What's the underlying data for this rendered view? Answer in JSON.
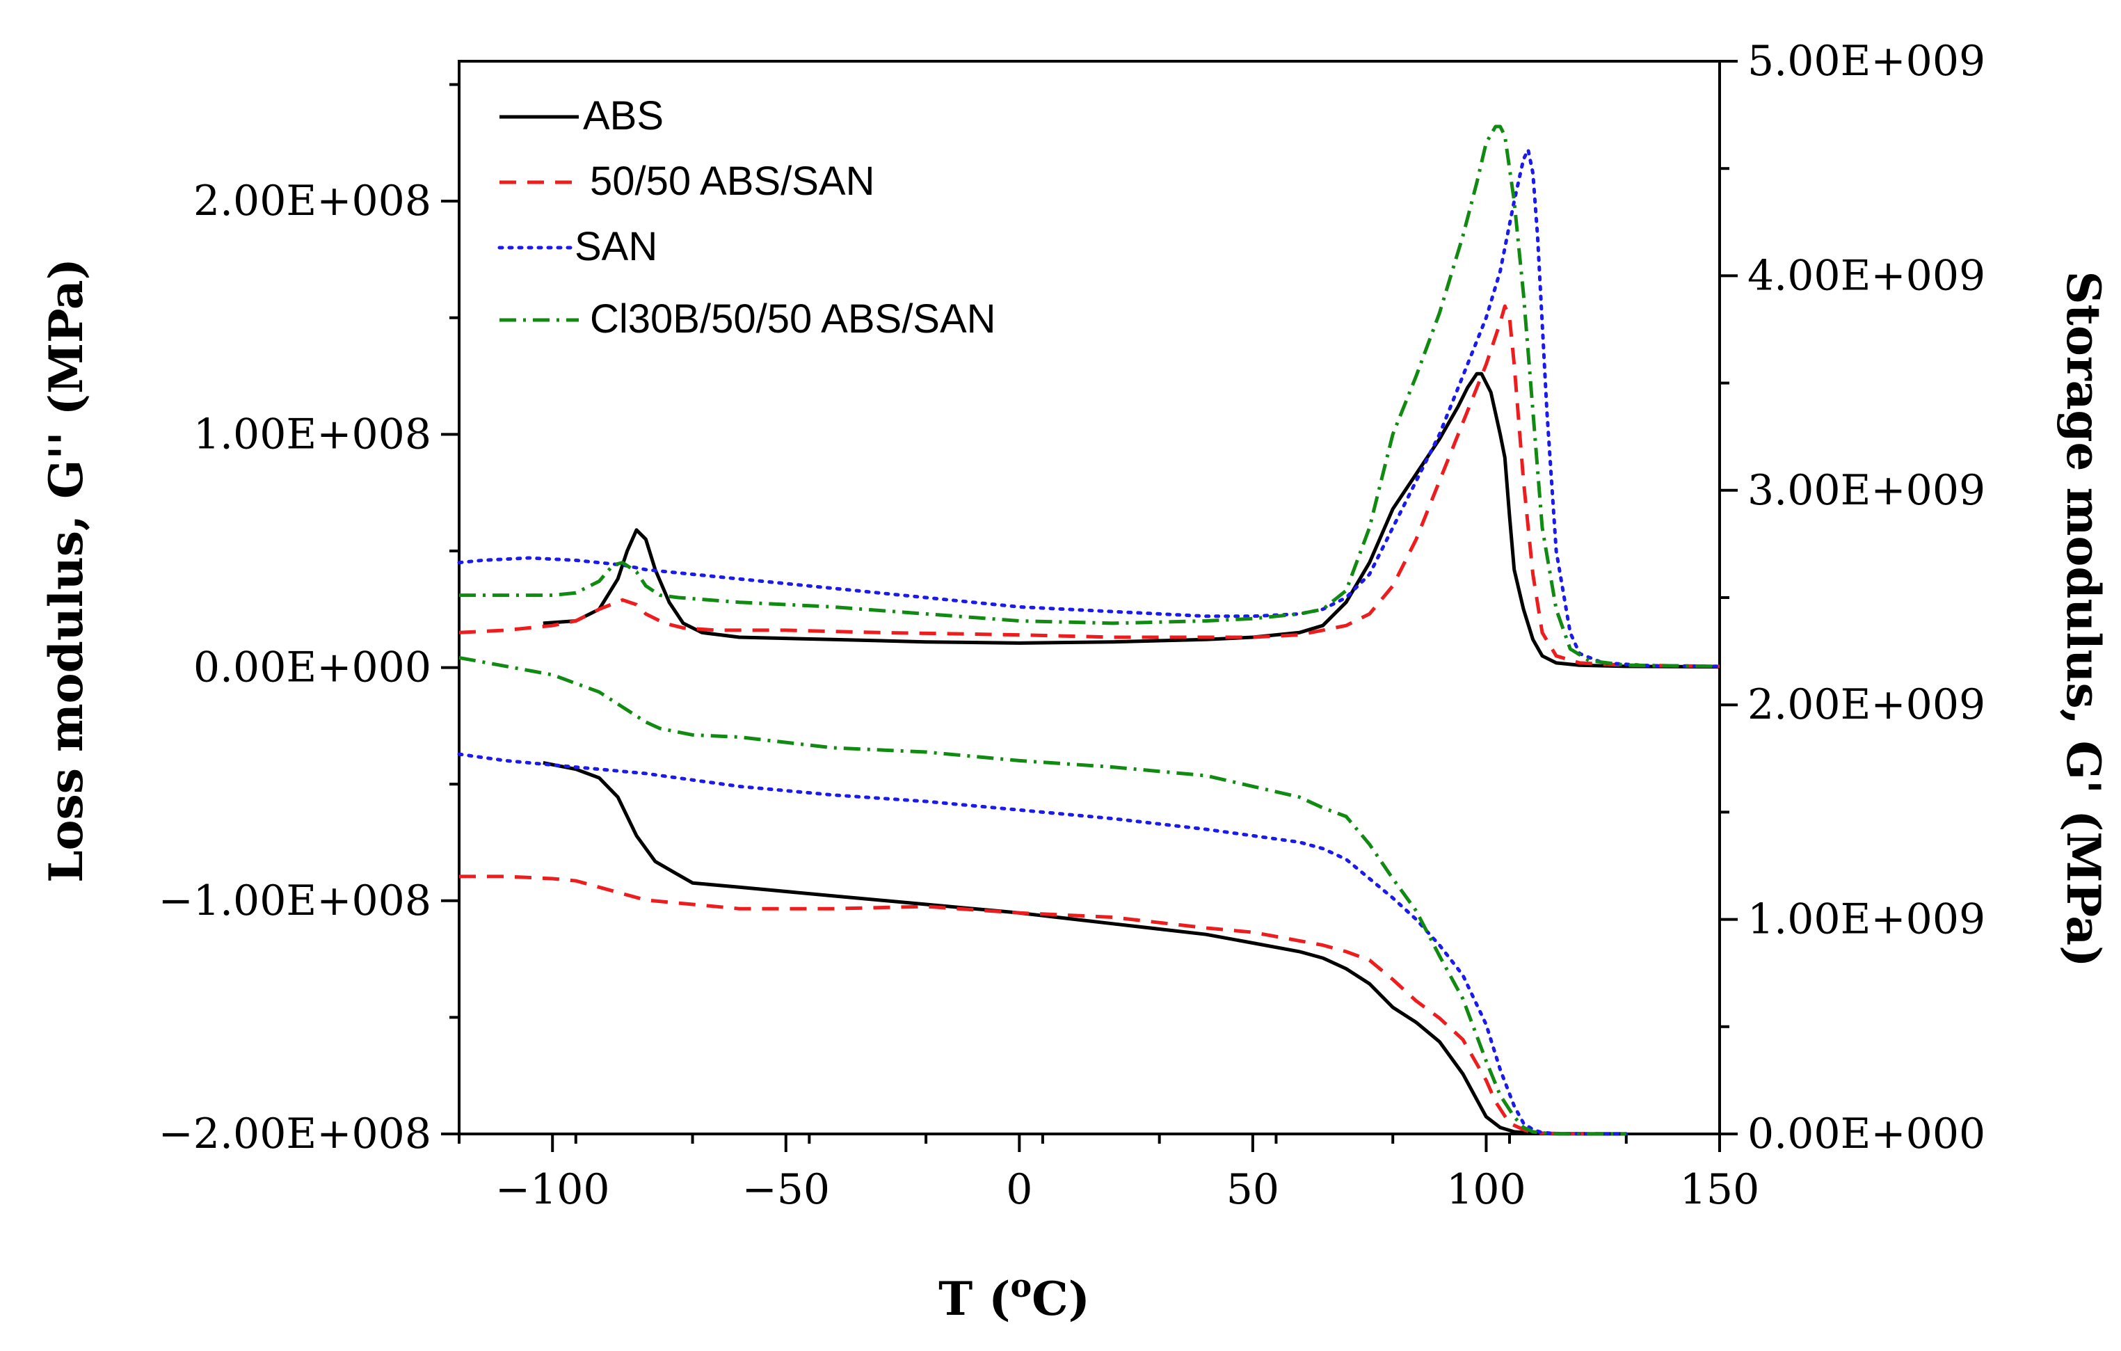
{
  "chart_data": {
    "type": "line",
    "title": "",
    "xlabel": "T (",
    "xlabel_superscript": "o",
    "xlabel_suffix": "C)",
    "ylabel_left": "Loss modulus, G'' (MPa)",
    "ylabel_right": "Storage modulus, G' (MPa)",
    "xlim": [
      -120,
      150
    ],
    "ylim_left": [
      -200000000,
      260000000
    ],
    "ylim_right": [
      0,
      5000000000
    ],
    "x_ticks": [
      -100,
      -50,
      0,
      50,
      100,
      150
    ],
    "x_tick_labels": [
      "−100",
      "−50",
      "0",
      "50",
      "100",
      "150"
    ],
    "y_left_ticks": [
      -200000000,
      -100000000,
      0,
      100000000,
      200000000
    ],
    "y_left_tick_labels": [
      "−2.00E+008",
      "−1.00E+008",
      "0.00E+000",
      "1.00E+008",
      "2.00E+008"
    ],
    "y_right_ticks": [
      0,
      1000000000,
      2000000000,
      3000000000,
      4000000000,
      5000000000
    ],
    "y_right_tick_labels": [
      "0.00E+000",
      "1.00E+009",
      "2.00E+009",
      "3.00E+009",
      "4.00E+009",
      "5.00E+009"
    ],
    "legend": [
      {
        "name": "ABS",
        "color": "#000000",
        "style": "solid"
      },
      {
        "name": "50/50 ABS/SAN",
        "color": "#ee1c1c",
        "style": "dashed"
      },
      {
        "name": "SAN",
        "color": "#1a1aee",
        "style": "dotted"
      },
      {
        "name": "Cl30B/50/50 ABS/SAN",
        "color": "#108a10",
        "style": "dashdot"
      }
    ],
    "legend_position": "top-left",
    "series": [
      {
        "name": "ABS",
        "axis": "left",
        "quantity": "G''",
        "color": "#000000",
        "style": "solid",
        "x": [
          -102,
          -95,
          -90,
          -86,
          -84,
          -82,
          -80,
          -78,
          -75,
          -72,
          -68,
          -60,
          -40,
          -20,
          0,
          20,
          40,
          50,
          60,
          65,
          70,
          75,
          80,
          85,
          90,
          94,
          96,
          98,
          99,
          101,
          103,
          104,
          105,
          106,
          108,
          110,
          112,
          115,
          120,
          130,
          150
        ],
        "y": [
          19000000,
          20000000,
          25000000,
          38000000,
          50000000,
          59000000,
          55000000,
          42000000,
          28000000,
          19000000,
          15000000,
          13000000,
          12000000,
          11000000,
          10500000,
          11000000,
          12000000,
          13000000,
          15000000,
          18000000,
          28000000,
          45000000,
          68000000,
          83000000,
          98000000,
          112000000,
          120000000,
          126000000,
          126000000,
          118000000,
          100000000,
          90000000,
          65000000,
          42000000,
          25000000,
          12000000,
          5000000,
          2000000,
          1000000,
          500000,
          300000
        ]
      },
      {
        "name": "50/50 ABS/SAN",
        "axis": "left",
        "quantity": "G''",
        "color": "#ee1c1c",
        "style": "dashed",
        "x": [
          -120,
          -110,
          -100,
          -95,
          -90,
          -85,
          -82,
          -80,
          -76,
          -72,
          -65,
          -50,
          -30,
          0,
          20,
          40,
          50,
          60,
          65,
          70,
          75,
          80,
          85,
          90,
          95,
          100,
          103,
          104,
          105,
          106,
          108,
          110,
          112,
          115,
          120,
          130,
          150
        ],
        "y": [
          15000000,
          16000000,
          18000000,
          20000000,
          25000000,
          29000000,
          27000000,
          23000000,
          19000000,
          17000000,
          16000000,
          16000000,
          15000000,
          14000000,
          13000000,
          13000000,
          13000000,
          14000000,
          16000000,
          18000000,
          23000000,
          35000000,
          55000000,
          80000000,
          105000000,
          130000000,
          148000000,
          155000000,
          150000000,
          130000000,
          80000000,
          40000000,
          15000000,
          5000000,
          2000000,
          1000000,
          500000
        ]
      },
      {
        "name": "SAN",
        "axis": "left",
        "quantity": "G''",
        "color": "#1a1aee",
        "style": "dotted",
        "x": [
          -120,
          -115,
          -105,
          -95,
          -85,
          -80,
          -60,
          -40,
          -20,
          0,
          20,
          40,
          50,
          60,
          65,
          70,
          75,
          80,
          85,
          90,
          95,
          100,
          103,
          106,
          108,
          109,
          110,
          111,
          113,
          115,
          118,
          120,
          125,
          135,
          150
        ],
        "y": [
          45000000,
          46000000,
          47000000,
          46000000,
          44000000,
          42000000,
          38000000,
          34000000,
          30000000,
          26000000,
          24000000,
          22000000,
          22000000,
          23000000,
          25000000,
          30000000,
          40000000,
          60000000,
          80000000,
          100000000,
          125000000,
          150000000,
          170000000,
          200000000,
          218000000,
          222000000,
          212000000,
          185000000,
          110000000,
          50000000,
          15000000,
          6000000,
          2000000,
          800000,
          500000
        ]
      },
      {
        "name": "Cl30B/50/50 ABS/SAN",
        "axis": "left",
        "quantity": "G''",
        "color": "#108a10",
        "style": "dashdot",
        "x": [
          -120,
          -110,
          -100,
          -95,
          -90,
          -87,
          -85,
          -82,
          -80,
          -77,
          -73,
          -60,
          -40,
          -20,
          0,
          20,
          40,
          50,
          60,
          65,
          70,
          75,
          80,
          85,
          90,
          95,
          98,
          100,
          102,
          103,
          104,
          106,
          108,
          110,
          112,
          115,
          118,
          122,
          130,
          150
        ],
        "y": [
          31000000,
          31000000,
          31000000,
          32000000,
          37000000,
          44000000,
          45000000,
          41000000,
          35000000,
          31000000,
          30000000,
          28000000,
          26000000,
          23000000,
          20000000,
          19000000,
          20000000,
          21000000,
          23000000,
          25000000,
          33000000,
          60000000,
          100000000,
          125000000,
          152000000,
          185000000,
          208000000,
          225000000,
          232000000,
          232000000,
          228000000,
          200000000,
          160000000,
          110000000,
          60000000,
          25000000,
          8000000,
          3000000,
          1000000,
          500000
        ]
      },
      {
        "name": "ABS",
        "axis": "right",
        "quantity": "G'",
        "color": "#000000",
        "style": "solid",
        "x": [
          -102,
          -95,
          -90,
          -86,
          -82,
          -78,
          -74,
          -70,
          -60,
          -40,
          -20,
          0,
          20,
          40,
          50,
          60,
          65,
          70,
          75,
          80,
          85,
          90,
          95,
          98,
          100,
          103,
          106,
          110,
          115,
          120,
          130
        ],
        "y": [
          1730000000,
          1700000000,
          1660000000,
          1570000000,
          1390000000,
          1270000000,
          1220000000,
          1170000000,
          1150000000,
          1110000000,
          1070000000,
          1030000000,
          980000000,
          930000000,
          890000000,
          850000000,
          820000000,
          770000000,
          700000000,
          590000000,
          520000000,
          430000000,
          280000000,
          160000000,
          80000000,
          30000000,
          10000000,
          3000000,
          1000000,
          500000,
          300000
        ]
      },
      {
        "name": "50/50 ABS/SAN",
        "axis": "right",
        "quantity": "G'",
        "color": "#ee1c1c",
        "style": "dashed",
        "x": [
          -120,
          -110,
          -100,
          -95,
          -90,
          -85,
          -80,
          -75,
          -70,
          -60,
          -40,
          -20,
          0,
          20,
          40,
          50,
          60,
          65,
          70,
          75,
          80,
          85,
          90,
          95,
          100,
          102,
          105,
          108,
          110,
          115,
          125
        ],
        "y": [
          1200000000,
          1200000000,
          1190000000,
          1180000000,
          1150000000,
          1120000000,
          1090000000,
          1080000000,
          1070000000,
          1050000000,
          1050000000,
          1060000000,
          1030000000,
          1010000000,
          960000000,
          940000000,
          900000000,
          880000000,
          850000000,
          810000000,
          720000000,
          620000000,
          540000000,
          440000000,
          250000000,
          150000000,
          50000000,
          20000000,
          5000000,
          2000000,
          500000
        ]
      },
      {
        "name": "SAN",
        "axis": "right",
        "quantity": "G'",
        "color": "#1a1aee",
        "style": "dotted",
        "x": [
          -120,
          -110,
          -100,
          -90,
          -80,
          -60,
          -40,
          -20,
          0,
          20,
          40,
          50,
          60,
          65,
          70,
          75,
          80,
          85,
          90,
          95,
          100,
          103,
          106,
          108,
          110,
          112,
          115,
          120,
          130
        ],
        "y": [
          1770000000,
          1740000000,
          1720000000,
          1700000000,
          1680000000,
          1620000000,
          1580000000,
          1550000000,
          1510000000,
          1470000000,
          1420000000,
          1390000000,
          1360000000,
          1330000000,
          1280000000,
          1190000000,
          1100000000,
          1000000000,
          880000000,
          740000000,
          510000000,
          300000000,
          130000000,
          50000000,
          20000000,
          6000000,
          2000000,
          700000,
          300000
        ]
      },
      {
        "name": "Cl30B/50/50 ABS/SAN",
        "axis": "right",
        "quantity": "G'",
        "color": "#108a10",
        "style": "dashdot",
        "x": [
          -120,
          -110,
          -100,
          -95,
          -90,
          -85,
          -80,
          -77,
          -70,
          -60,
          -40,
          -20,
          0,
          20,
          40,
          50,
          60,
          65,
          70,
          75,
          80,
          85,
          90,
          95,
          100,
          103,
          106,
          108,
          110,
          113,
          116,
          120,
          130
        ],
        "y": [
          2220000000,
          2180000000,
          2140000000,
          2100000000,
          2060000000,
          1990000000,
          1920000000,
          1890000000,
          1860000000,
          1850000000,
          1800000000,
          1780000000,
          1740000000,
          1710000000,
          1670000000,
          1620000000,
          1570000000,
          1520000000,
          1480000000,
          1350000000,
          1190000000,
          1040000000,
          830000000,
          630000000,
          340000000,
          180000000,
          80000000,
          30000000,
          10000000,
          3000000,
          1000000,
          500000,
          300000
        ]
      }
    ]
  }
}
